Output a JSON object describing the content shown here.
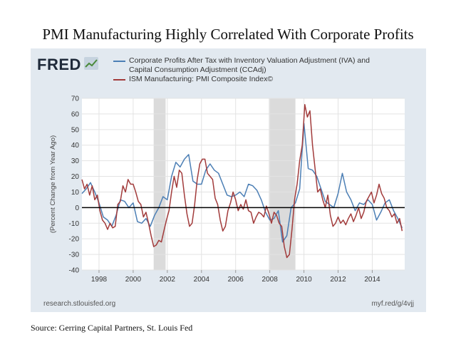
{
  "page": {
    "title": "PMI Manufacturing Highly Correlated With Corporate Profits",
    "source": "Source: Gerring Capital Partners, St. Louis Fed"
  },
  "fred": {
    "logo_text": "FRED",
    "footer_left": "research.stlouisfed.org",
    "footer_right": "myf.red/g/4vjj"
  },
  "colors": {
    "profits": "#4c7fb5",
    "pmi": "#a23b3b",
    "recession": "#cfcfcf",
    "panel": "#e2e9f0",
    "plot_bg": "#ffffff"
  },
  "chart_data": {
    "type": "line",
    "ylabel": "(Percent Change from Year Ago)",
    "xlabel": "",
    "ylim": [
      -40,
      70
    ],
    "yticks": [
      -40,
      -30,
      -20,
      -10,
      0,
      10,
      20,
      30,
      40,
      50,
      60,
      70
    ],
    "xlim": [
      1997.0,
      2015.9
    ],
    "xticks": [
      1998,
      2000,
      2002,
      2004,
      2006,
      2008,
      2010,
      2012,
      2014
    ],
    "grid": true,
    "legend_position": "top",
    "recessions": [
      [
        2001.2,
        2001.9
      ],
      [
        2007.95,
        2009.5
      ]
    ],
    "series": [
      {
        "name": "Corporate Profits After Tax with Inventory Valuation Adjustment (IVA) and Capital Consumption Adjustment (CCAdj)",
        "legend_lines": [
          "Corporate Profits After Tax with Inventory Valuation Adjustment (IVA) and",
          "Capital Consumption Adjustment (CCAdj)"
        ],
        "color_key": "profits",
        "points": [
          [
            1997.0,
            9
          ],
          [
            1997.25,
            12
          ],
          [
            1997.5,
            16
          ],
          [
            1997.75,
            10
          ],
          [
            1998.0,
            3
          ],
          [
            1998.25,
            -6
          ],
          [
            1998.5,
            -8
          ],
          [
            1998.75,
            -12
          ],
          [
            1999.0,
            -5
          ],
          [
            1999.25,
            5
          ],
          [
            1999.5,
            4
          ],
          [
            1999.75,
            0
          ],
          [
            2000.0,
            3
          ],
          [
            2000.25,
            -9
          ],
          [
            2000.5,
            -10
          ],
          [
            2000.75,
            -7
          ],
          [
            2001.0,
            -12
          ],
          [
            2001.25,
            -5
          ],
          [
            2001.5,
            0
          ],
          [
            2001.75,
            7
          ],
          [
            2002.0,
            5
          ],
          [
            2002.25,
            20
          ],
          [
            2002.5,
            29
          ],
          [
            2002.75,
            26
          ],
          [
            2003.0,
            31
          ],
          [
            2003.25,
            34
          ],
          [
            2003.5,
            17
          ],
          [
            2003.75,
            15
          ],
          [
            2004.0,
            15
          ],
          [
            2004.25,
            24
          ],
          [
            2004.5,
            28
          ],
          [
            2004.75,
            24
          ],
          [
            2005.0,
            22
          ],
          [
            2005.25,
            15
          ],
          [
            2005.5,
            8
          ],
          [
            2005.75,
            7
          ],
          [
            2006.0,
            8
          ],
          [
            2006.25,
            10
          ],
          [
            2006.5,
            7
          ],
          [
            2006.75,
            15
          ],
          [
            2007.0,
            14
          ],
          [
            2007.25,
            11
          ],
          [
            2007.5,
            5
          ],
          [
            2007.75,
            -3
          ],
          [
            2008.0,
            -8
          ],
          [
            2008.25,
            -7
          ],
          [
            2008.5,
            -2
          ],
          [
            2008.75,
            -22
          ],
          [
            2009.0,
            -18
          ],
          [
            2009.25,
            0
          ],
          [
            2009.5,
            3
          ],
          [
            2009.75,
            12
          ],
          [
            2010.0,
            54
          ],
          [
            2010.25,
            25
          ],
          [
            2010.5,
            24
          ],
          [
            2010.75,
            20
          ],
          [
            2011.0,
            12
          ],
          [
            2011.25,
            4
          ],
          [
            2011.5,
            2
          ],
          [
            2011.75,
            0
          ],
          [
            2012.0,
            9
          ],
          [
            2012.25,
            22
          ],
          [
            2012.5,
            10
          ],
          [
            2012.75,
            5
          ],
          [
            2013.0,
            -2
          ],
          [
            2013.25,
            3
          ],
          [
            2013.5,
            2
          ],
          [
            2013.75,
            5
          ],
          [
            2014.0,
            2
          ],
          [
            2014.25,
            -8
          ],
          [
            2014.5,
            -3
          ],
          [
            2014.75,
            3
          ],
          [
            2015.0,
            5
          ],
          [
            2015.25,
            -2
          ],
          [
            2015.5,
            -7
          ],
          [
            2015.75,
            -13
          ]
        ]
      },
      {
        "name": "ISM Manufacturing: PMI Composite Index©",
        "legend_lines": [
          "ISM Manufacturing: PMI Composite Index©"
        ],
        "color_key": "pmi",
        "points": [
          [
            1997.0,
            18
          ],
          [
            1997.15,
            12
          ],
          [
            1997.3,
            15
          ],
          [
            1997.45,
            8
          ],
          [
            1997.6,
            14
          ],
          [
            1997.75,
            5
          ],
          [
            1997.9,
            8
          ],
          [
            1998.05,
            -2
          ],
          [
            1998.2,
            -8
          ],
          [
            1998.35,
            -10
          ],
          [
            1998.5,
            -14
          ],
          [
            1998.65,
            -10
          ],
          [
            1998.8,
            -13
          ],
          [
            1998.95,
            -12
          ],
          [
            1999.1,
            2
          ],
          [
            1999.25,
            4
          ],
          [
            1999.4,
            14
          ],
          [
            1999.55,
            10
          ],
          [
            1999.7,
            18
          ],
          [
            1999.85,
            15
          ],
          [
            2000.0,
            15
          ],
          [
            2000.15,
            10
          ],
          [
            2000.3,
            4
          ],
          [
            2000.45,
            2
          ],
          [
            2000.6,
            -6
          ],
          [
            2000.75,
            -3
          ],
          [
            2000.9,
            -10
          ],
          [
            2001.05,
            -18
          ],
          [
            2001.2,
            -25
          ],
          [
            2001.35,
            -24
          ],
          [
            2001.5,
            -21
          ],
          [
            2001.65,
            -22
          ],
          [
            2001.8,
            -15
          ],
          [
            2001.95,
            -8
          ],
          [
            2002.1,
            -2
          ],
          [
            2002.25,
            10
          ],
          [
            2002.4,
            20
          ],
          [
            2002.55,
            13
          ],
          [
            2002.7,
            24
          ],
          [
            2002.85,
            22
          ],
          [
            2003.0,
            8
          ],
          [
            2003.15,
            -4
          ],
          [
            2003.3,
            -12
          ],
          [
            2003.45,
            -10
          ],
          [
            2003.6,
            2
          ],
          [
            2003.75,
            18
          ],
          [
            2003.9,
            28
          ],
          [
            2004.05,
            31
          ],
          [
            2004.2,
            31
          ],
          [
            2004.35,
            22
          ],
          [
            2004.5,
            20
          ],
          [
            2004.65,
            18
          ],
          [
            2004.8,
            6
          ],
          [
            2004.95,
            2
          ],
          [
            2005.1,
            -8
          ],
          [
            2005.25,
            -15
          ],
          [
            2005.4,
            -12
          ],
          [
            2005.55,
            -2
          ],
          [
            2005.7,
            3
          ],
          [
            2005.85,
            10
          ],
          [
            2006.0,
            5
          ],
          [
            2006.15,
            -2
          ],
          [
            2006.3,
            2
          ],
          [
            2006.45,
            -1
          ],
          [
            2006.6,
            5
          ],
          [
            2006.75,
            -2
          ],
          [
            2006.9,
            -3
          ],
          [
            2007.05,
            -10
          ],
          [
            2007.2,
            -6
          ],
          [
            2007.35,
            -3
          ],
          [
            2007.5,
            -4
          ],
          [
            2007.65,
            -6
          ],
          [
            2007.8,
            1
          ],
          [
            2007.95,
            -4
          ],
          [
            2008.1,
            -10
          ],
          [
            2008.25,
            -3
          ],
          [
            2008.4,
            -5
          ],
          [
            2008.55,
            -10
          ],
          [
            2008.7,
            -12
          ],
          [
            2008.85,
            -25
          ],
          [
            2009.0,
            -32
          ],
          [
            2009.15,
            -30
          ],
          [
            2009.3,
            -14
          ],
          [
            2009.45,
            5
          ],
          [
            2009.6,
            15
          ],
          [
            2009.75,
            30
          ],
          [
            2009.9,
            40
          ],
          [
            2010.05,
            66
          ],
          [
            2010.2,
            58
          ],
          [
            2010.35,
            62
          ],
          [
            2010.5,
            40
          ],
          [
            2010.65,
            25
          ],
          [
            2010.8,
            10
          ],
          [
            2010.95,
            12
          ],
          [
            2011.1,
            5
          ],
          [
            2011.25,
            0
          ],
          [
            2011.4,
            8
          ],
          [
            2011.55,
            -5
          ],
          [
            2011.7,
            -12
          ],
          [
            2011.85,
            -10
          ],
          [
            2012.0,
            -6
          ],
          [
            2012.15,
            -10
          ],
          [
            2012.3,
            -8
          ],
          [
            2012.45,
            -11
          ],
          [
            2012.6,
            -7
          ],
          [
            2012.75,
            -4
          ],
          [
            2012.9,
            -9
          ],
          [
            2013.05,
            -5
          ],
          [
            2013.2,
            0
          ],
          [
            2013.35,
            -7
          ],
          [
            2013.5,
            -3
          ],
          [
            2013.65,
            4
          ],
          [
            2013.8,
            7
          ],
          [
            2013.95,
            10
          ],
          [
            2014.1,
            3
          ],
          [
            2014.25,
            8
          ],
          [
            2014.4,
            15
          ],
          [
            2014.55,
            9
          ],
          [
            2014.7,
            6
          ],
          [
            2014.85,
            0
          ],
          [
            2015.0,
            -2
          ],
          [
            2015.15,
            -6
          ],
          [
            2015.3,
            -4
          ],
          [
            2015.45,
            -10
          ],
          [
            2015.6,
            -7
          ],
          [
            2015.75,
            -15
          ]
        ]
      }
    ]
  }
}
